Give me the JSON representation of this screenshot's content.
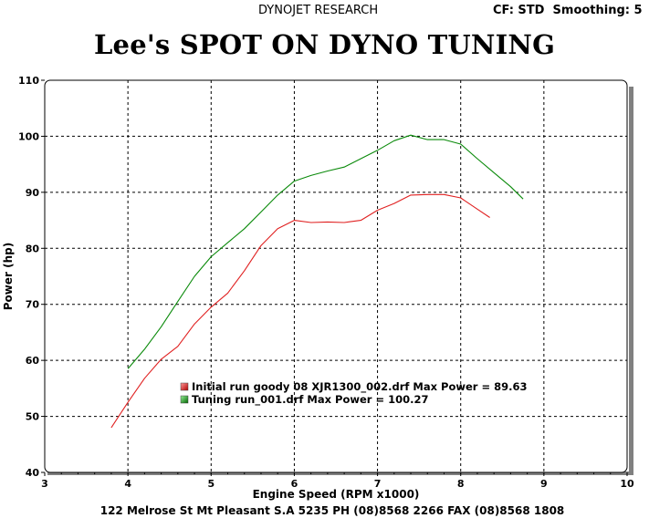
{
  "header": {
    "company": "DYNOJET RESEARCH",
    "cf_label": "CF: STD",
    "smoothing_label": "Smoothing: 5"
  },
  "title": "Lee's SPOT ON DYNO TUNING",
  "footer": "122 Melrose St  Mt Pleasant  S.A  5235 PH (08)8568 2266 FAX (08)8568 1808",
  "colors": {
    "series_initial": "#e02020",
    "series_tuning": "#0a8a0a",
    "grid": "#000000",
    "plot_border": "#000000"
  },
  "chart_data": {
    "type": "line",
    "title": "Lee's SPOT ON DYNO TUNING",
    "xlabel": "Engine Speed (RPM x1000)",
    "ylabel": "Power (hp)",
    "xlim": [
      3,
      10
    ],
    "ylim": [
      40,
      110
    ],
    "xticks": [
      3,
      4,
      5,
      6,
      7,
      8,
      9,
      10
    ],
    "yticks": [
      40,
      50,
      60,
      70,
      80,
      90,
      100,
      110
    ],
    "grid": true,
    "legend_position": "lower-left-center",
    "series": [
      {
        "name": "Initial run goody 08 XJR1300_002.drf Max Power = 89.63",
        "color": "#e02020",
        "x": [
          3.8,
          4.0,
          4.2,
          4.4,
          4.6,
          4.8,
          5.0,
          5.2,
          5.4,
          5.6,
          5.8,
          6.0,
          6.2,
          6.4,
          6.6,
          6.8,
          7.0,
          7.2,
          7.4,
          7.6,
          7.8,
          8.0,
          8.2,
          8.35
        ],
        "y": [
          48.0,
          52.5,
          56.8,
          60.2,
          62.5,
          66.5,
          69.5,
          72.0,
          76.0,
          80.5,
          83.5,
          85.0,
          84.6,
          84.7,
          84.6,
          85.0,
          86.8,
          88.0,
          89.5,
          89.6,
          89.6,
          89.0,
          87.0,
          85.5
        ]
      },
      {
        "name": "Tuning run_001.drf Max Power = 100.27",
        "color": "#0a8a0a",
        "x": [
          4.0,
          4.2,
          4.4,
          4.6,
          4.8,
          5.0,
          5.2,
          5.4,
          5.6,
          5.8,
          6.0,
          6.2,
          6.4,
          6.6,
          6.8,
          7.0,
          7.2,
          7.4,
          7.6,
          7.8,
          8.0,
          8.2,
          8.4,
          8.6,
          8.75
        ],
        "y": [
          58.5,
          62.0,
          66.0,
          70.5,
          75.0,
          78.5,
          81.0,
          83.5,
          86.5,
          89.5,
          92.0,
          93.0,
          93.8,
          94.5,
          96.0,
          97.5,
          99.2,
          100.2,
          99.4,
          99.4,
          98.6,
          96.0,
          93.5,
          91.0,
          88.8
        ]
      }
    ]
  }
}
